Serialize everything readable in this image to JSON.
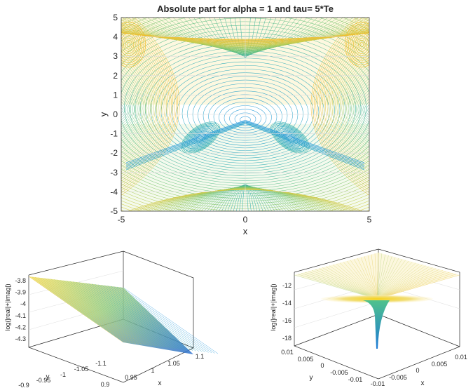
{
  "chart_data": [
    {
      "type": "contour",
      "title": "Absolute part for alpha = 1 and tau= 5*Te",
      "xlabel": "x",
      "ylabel": "y",
      "xlim": [
        -5,
        5
      ],
      "ylim": [
        -5,
        5
      ],
      "xticks": [
        "-5",
        "0",
        "5"
      ],
      "yticks": [
        "5",
        "4",
        "3",
        "2",
        "1",
        "0",
        "-1",
        "-2",
        "-3",
        "-4",
        "-5"
      ],
      "grid": true,
      "colormap": "parula",
      "colors": {
        "low": "#1c93dc",
        "mid": "#47bb8c",
        "high": "#f2bf2f"
      },
      "features": [
        {
          "name": "central minimum",
          "x": 0,
          "y": -0.3
        },
        {
          "name": "left closed contours",
          "x": -1.8,
          "y": -1.2
        },
        {
          "name": "right closed contours",
          "x": 1.8,
          "y": -1.2
        },
        {
          "name": "upper-left maximum",
          "x": -4.7,
          "y": 3.6
        },
        {
          "name": "upper-right maximum",
          "x": 4.7,
          "y": 3.6
        }
      ]
    },
    {
      "type": "surface",
      "xlabel": "x",
      "ylabel": "y",
      "zlabel": "log(|real|+|imag|)",
      "xlim": [
        0.9,
        1.1
      ],
      "ylim": [
        -1.1,
        -0.9
      ],
      "zlim": [
        -4.35,
        -3.75
      ],
      "xticks": [
        "0.9",
        "0.95",
        "1",
        "1.05",
        "1.1"
      ],
      "yticks": [
        "-1.1",
        "-1.05",
        "-1",
        "-0.95",
        "-0.9"
      ],
      "zticks": [
        "-3.8",
        "-3.9",
        "-4",
        "-4.1",
        "-4.2",
        "-4.3"
      ],
      "grid": true,
      "corner_values": [
        {
          "x": 0.9,
          "y": -0.9,
          "z": -3.8
        },
        {
          "x": 1.1,
          "y": -0.9,
          "z": -4.05
        },
        {
          "x": 1.1,
          "y": -1.1,
          "z": -4.32
        },
        {
          "x": 0.9,
          "y": -1.1,
          "z": -4.05
        }
      ]
    },
    {
      "type": "surface",
      "xlabel": "x",
      "ylabel": "y",
      "zlabel": "log(|real|+|imag|)",
      "xlim": [
        -0.01,
        0.01
      ],
      "ylim": [
        -0.01,
        0.01
      ],
      "zlim": [
        -18,
        -11
      ],
      "xticks": [
        "-0.01",
        "-0.005",
        "0",
        "0.005",
        "0.01"
      ],
      "yticks": [
        "-0.01",
        "-0.005",
        "0",
        "0.005",
        "0.01"
      ],
      "zticks": [
        "-12",
        "-14",
        "-16",
        "-18"
      ],
      "grid": true,
      "corner_values": [
        {
          "x": -0.01,
          "y": 0.01,
          "z": -11.6
        },
        {
          "x": 0.01,
          "y": 0.01,
          "z": -11.6
        },
        {
          "x": 0.01,
          "y": -0.01,
          "z": -11.6
        },
        {
          "x": -0.01,
          "y": -0.01,
          "z": -11.6
        }
      ],
      "minimum": {
        "x": 0,
        "y": 0,
        "z": -18
      }
    }
  ]
}
